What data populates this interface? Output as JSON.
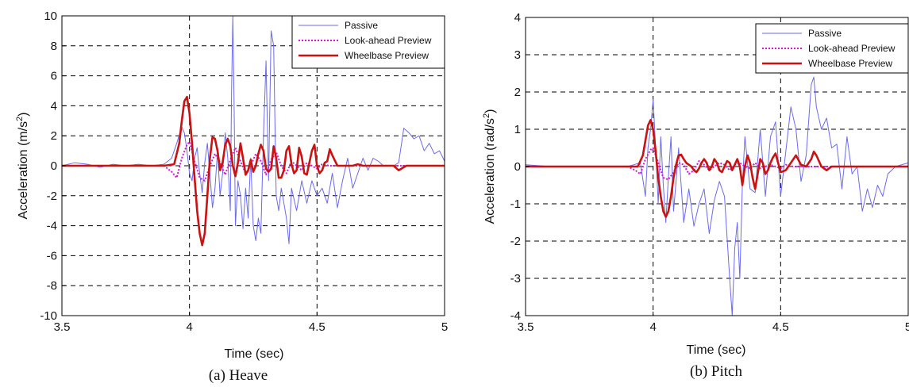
{
  "chart_data": [
    {
      "type": "line",
      "caption": "(a) Heave",
      "xlabel": "Time (sec)",
      "ylabel_main": "Acceleration (m/s",
      "ylabel_sup": "2",
      "ylabel_tail": ")",
      "xlim": [
        3.5,
        5
      ],
      "ylim": [
        -10,
        10
      ],
      "xticks": [
        3.5,
        4,
        4.5,
        5
      ],
      "xtick_labels": [
        "3.5",
        "4",
        "4.5",
        "5"
      ],
      "yticks": [
        -10,
        -8,
        -6,
        -4,
        -2,
        0,
        2,
        4,
        6,
        8,
        10
      ],
      "ytick_labels": [
        "-10",
        "-8",
        "-6",
        "-4",
        "-2",
        "0",
        "2",
        "4",
        "6",
        "8",
        "10"
      ],
      "grid": true,
      "legend_position": "top-right",
      "series": [
        {
          "name": "Passive",
          "color": "#6a6af0",
          "style": "solid",
          "x": [
            3.5,
            3.55,
            3.6,
            3.65,
            3.7,
            3.75,
            3.8,
            3.85,
            3.9,
            3.93,
            3.95,
            3.97,
            3.98,
            3.99,
            4.0,
            4.01,
            4.02,
            4.03,
            4.04,
            4.05,
            4.06,
            4.07,
            4.08,
            4.09,
            4.1,
            4.11,
            4.12,
            4.13,
            4.14,
            4.15,
            4.16,
            4.165,
            4.17,
            4.175,
            4.18,
            4.19,
            4.2,
            4.21,
            4.22,
            4.23,
            4.24,
            4.25,
            4.26,
            4.27,
            4.28,
            4.29,
            4.3,
            4.31,
            4.32,
            4.33,
            4.34,
            4.35,
            4.36,
            4.37,
            4.38,
            4.39,
            4.4,
            4.42,
            4.44,
            4.46,
            4.48,
            4.5,
            4.52,
            4.54,
            4.56,
            4.58,
            4.6,
            4.62,
            4.64,
            4.66,
            4.68,
            4.7,
            4.72,
            4.74,
            4.76,
            4.78,
            4.8,
            4.82,
            4.84,
            4.86,
            4.88,
            4.9,
            4.92,
            4.94,
            4.96,
            4.98,
            5.0
          ],
          "y": [
            0,
            0.2,
            0.1,
            -0.1,
            0.1,
            0,
            0.1,
            0,
            0.1,
            0.5,
            1.5,
            2.6,
            2.2,
            1.0,
            -0.5,
            -1.0,
            0.5,
            1.2,
            -0.5,
            -1.8,
            0.2,
            1.5,
            -0.5,
            -2.8,
            -1.5,
            1.0,
            -2.0,
            -0.5,
            2.2,
            0.5,
            -3.0,
            5.0,
            10.0,
            4.0,
            -4.0,
            -1.0,
            -2.0,
            -4.2,
            -1.5,
            -3.5,
            0.5,
            -4.0,
            -5.0,
            -3.5,
            -4.5,
            2.0,
            7.0,
            -1.0,
            9.0,
            8.0,
            -2.0,
            -3.0,
            -1.5,
            -2.5,
            -3.5,
            -5.2,
            -1.5,
            -3.0,
            -1.0,
            -2.5,
            -1.0,
            -2.0,
            -1.5,
            -2.5,
            -0.5,
            -2.8,
            -1.0,
            0.5,
            -1.5,
            -0.5,
            0.5,
            -0.3,
            0.5,
            0.3,
            0.0,
            0.0,
            0.0,
            0.2,
            2.5,
            2.2,
            1.8,
            2.0,
            1.0,
            1.5,
            0.8,
            1.0,
            0.3
          ]
        },
        {
          "name": "Look-ahead Preview",
          "color": "#e010e0",
          "style": "dotted",
          "x": [
            3.5,
            3.6,
            3.7,
            3.8,
            3.9,
            3.93,
            3.95,
            3.97,
            3.99,
            4.0,
            4.02,
            4.04,
            4.06,
            4.08,
            4.1,
            4.12,
            4.14,
            4.16,
            4.18,
            4.2,
            4.22,
            4.24,
            4.26,
            4.28,
            4.3,
            4.32,
            4.34,
            4.36,
            4.38,
            4.4,
            4.42,
            4.44,
            4.46,
            4.48,
            4.5,
            4.52,
            4.55,
            4.6,
            4.7,
            4.8,
            4.9,
            5.0
          ],
          "y": [
            0,
            0,
            0,
            0,
            0,
            -0.4,
            -0.8,
            0.5,
            1.4,
            1.6,
            0.3,
            -0.8,
            -1.0,
            0.0,
            0.8,
            0.2,
            -0.6,
            0.4,
            1.2,
            0.3,
            -0.5,
            0.0,
            0.8,
            0.3,
            -0.6,
            0.4,
            0.9,
            0.0,
            -0.5,
            0.3,
            0.0,
            -0.3,
            0.2,
            0.0,
            -0.2,
            0.1,
            0,
            0,
            0,
            0,
            0,
            0
          ]
        },
        {
          "name": "Wheelbase Preview",
          "color": "#cc1111",
          "style": "solid",
          "x": [
            3.5,
            3.6,
            3.7,
            3.8,
            3.9,
            3.94,
            3.96,
            3.97,
            3.98,
            3.99,
            4.0,
            4.01,
            4.02,
            4.03,
            4.04,
            4.05,
            4.06,
            4.07,
            4.08,
            4.09,
            4.1,
            4.11,
            4.12,
            4.13,
            4.14,
            4.15,
            4.16,
            4.17,
            4.18,
            4.19,
            4.2,
            4.21,
            4.22,
            4.23,
            4.24,
            4.25,
            4.26,
            4.27,
            4.28,
            4.29,
            4.3,
            4.31,
            4.32,
            4.33,
            4.34,
            4.35,
            4.36,
            4.37,
            4.38,
            4.39,
            4.4,
            4.41,
            4.42,
            4.43,
            4.44,
            4.45,
            4.46,
            4.47,
            4.48,
            4.49,
            4.5,
            4.51,
            4.52,
            4.53,
            4.54,
            4.55,
            4.56,
            4.58,
            4.6,
            4.62,
            4.64,
            4.66,
            4.68,
            4.7,
            4.75,
            4.8,
            4.82,
            4.85,
            4.9,
            4.95,
            5.0
          ],
          "y": [
            0,
            0,
            0,
            0,
            0,
            0.1,
            1.5,
            3.0,
            4.3,
            4.6,
            3.5,
            1.5,
            -0.8,
            -3.0,
            -4.5,
            -5.3,
            -4.5,
            -2.0,
            0.5,
            1.9,
            1.8,
            1.0,
            -0.3,
            0.2,
            1.4,
            1.8,
            1.3,
            0.0,
            -0.7,
            0.2,
            1.5,
            0.5,
            -0.6,
            -0.3,
            0.4,
            -0.4,
            0.0,
            0.8,
            1.4,
            1.0,
            -0.2,
            -0.4,
            -0.2,
            1.3,
            0.5,
            -0.8,
            -0.8,
            -0.3,
            1.0,
            1.3,
            0.1,
            -0.5,
            -0.3,
            1.2,
            0.6,
            -0.5,
            -0.6,
            0.2,
            1.0,
            1.4,
            0.0,
            -0.5,
            -0.3,
            0.2,
            0.3,
            1.1,
            0.7,
            0.0,
            0.0,
            0.0,
            0.0,
            0.1,
            0.0,
            0.0,
            0.0,
            0.0,
            -0.3,
            0.0,
            0.0,
            0.0,
            0.0
          ]
        }
      ]
    },
    {
      "type": "line",
      "caption": "(b) Pitch",
      "xlabel": "Time (sec)",
      "ylabel_main": "Acceleration (rad/s",
      "ylabel_sup": "2",
      "ylabel_tail": ")",
      "xlim": [
        3.5,
        5
      ],
      "ylim": [
        -4,
        4
      ],
      "xticks": [
        3.5,
        4,
        4.5,
        5
      ],
      "xtick_labels": [
        "3.5",
        "4",
        "4.5",
        "5"
      ],
      "yticks": [
        -4,
        -3,
        -2,
        -1,
        0,
        1,
        2,
        3,
        4
      ],
      "ytick_labels": [
        "-4",
        "-3",
        "-2",
        "-1",
        "0",
        "1",
        "2",
        "3",
        "4"
      ],
      "grid": true,
      "legend_position": "top-right",
      "series": [
        {
          "name": "Passive",
          "color": "#6a6af0",
          "style": "solid",
          "x": [
            3.5,
            3.6,
            3.7,
            3.8,
            3.9,
            3.95,
            3.97,
            3.98,
            3.99,
            4.0,
            4.01,
            4.02,
            4.03,
            4.04,
            4.05,
            4.06,
            4.07,
            4.08,
            4.09,
            4.1,
            4.12,
            4.14,
            4.16,
            4.18,
            4.2,
            4.22,
            4.24,
            4.26,
            4.28,
            4.3,
            4.31,
            4.32,
            4.33,
            4.34,
            4.35,
            4.36,
            4.38,
            4.4,
            4.42,
            4.44,
            4.46,
            4.48,
            4.5,
            4.52,
            4.54,
            4.56,
            4.58,
            4.6,
            4.62,
            4.63,
            4.64,
            4.66,
            4.68,
            4.7,
            4.72,
            4.74,
            4.76,
            4.78,
            4.8,
            4.82,
            4.84,
            4.86,
            4.88,
            4.9,
            4.92,
            4.95,
            5.0
          ],
          "y": [
            0.05,
            0,
            0,
            0,
            0,
            0.1,
            -0.8,
            0.5,
            1.0,
            1.8,
            0.5,
            -1.0,
            0.8,
            -0.5,
            -1.5,
            -0.3,
            0.8,
            -1.2,
            -0.4,
            0.5,
            -1.5,
            -0.6,
            -1.6,
            -1.0,
            -0.6,
            -1.8,
            -0.9,
            -0.4,
            -0.8,
            -3.0,
            -4.0,
            -2.2,
            -1.5,
            -3.0,
            -0.5,
            0.8,
            -0.6,
            -0.7,
            1.0,
            -0.8,
            0.8,
            1.2,
            -0.8,
            0.4,
            1.6,
            1.0,
            -0.4,
            0.3,
            2.2,
            2.4,
            1.6,
            1.0,
            1.3,
            0.5,
            0.6,
            -0.6,
            0.8,
            -0.2,
            0.0,
            -1.2,
            -0.6,
            -1.1,
            -0.5,
            -0.8,
            -0.2,
            0.0,
            0.1
          ]
        },
        {
          "name": "Look-ahead Preview",
          "color": "#e010e0",
          "style": "dotted",
          "x": [
            3.5,
            3.6,
            3.7,
            3.8,
            3.9,
            3.93,
            3.95,
            3.97,
            3.99,
            4.0,
            4.02,
            4.04,
            4.06,
            4.08,
            4.1,
            4.12,
            4.14,
            4.16,
            4.18,
            4.2,
            4.22,
            4.24,
            4.26,
            4.28,
            4.3,
            4.32,
            4.34,
            4.36,
            4.38,
            4.4,
            4.42,
            4.44,
            4.46,
            4.48,
            4.5,
            4.52,
            4.55,
            4.6,
            4.7,
            4.8,
            4.9,
            5.0
          ],
          "y": [
            0,
            0,
            0,
            0,
            0,
            -0.1,
            -0.2,
            0.2,
            0.45,
            0.5,
            0.1,
            -0.3,
            -0.35,
            -0.15,
            0.1,
            0.05,
            -0.2,
            -0.1,
            0.15,
            0.05,
            -0.1,
            0.0,
            0.1,
            0.05,
            -0.1,
            0.05,
            0.1,
            0.0,
            -0.05,
            0.1,
            -0.05,
            0.0,
            0.05,
            0.0,
            -0.05,
            0.05,
            0,
            0,
            0,
            0,
            0,
            0
          ]
        },
        {
          "name": "Wheelbase Preview",
          "color": "#cc1111",
          "style": "solid",
          "x": [
            3.5,
            3.6,
            3.7,
            3.8,
            3.9,
            3.94,
            3.96,
            3.97,
            3.98,
            3.99,
            4.0,
            4.01,
            4.02,
            4.03,
            4.04,
            4.05,
            4.06,
            4.07,
            4.08,
            4.09,
            4.1,
            4.11,
            4.12,
            4.13,
            4.14,
            4.15,
            4.16,
            4.17,
            4.18,
            4.19,
            4.2,
            4.21,
            4.22,
            4.23,
            4.24,
            4.25,
            4.26,
            4.27,
            4.28,
            4.29,
            4.3,
            4.31,
            4.32,
            4.33,
            4.34,
            4.35,
            4.36,
            4.37,
            4.38,
            4.39,
            4.4,
            4.41,
            4.42,
            4.43,
            4.44,
            4.45,
            4.46,
            4.47,
            4.48,
            4.49,
            4.5,
            4.52,
            4.54,
            4.56,
            4.58,
            4.6,
            4.62,
            4.63,
            4.64,
            4.66,
            4.68,
            4.7,
            4.75,
            4.8,
            4.9,
            5.0
          ],
          "y": [
            0,
            0,
            0,
            0,
            0,
            0.0,
            0.3,
            0.7,
            1.1,
            1.25,
            1.0,
            0.4,
            -0.3,
            -0.8,
            -1.2,
            -1.35,
            -1.2,
            -0.8,
            -0.3,
            0.05,
            0.3,
            0.32,
            0.2,
            0.1,
            0.05,
            0.0,
            -0.1,
            -0.15,
            -0.05,
            0.1,
            0.2,
            0.1,
            -0.1,
            0.0,
            0.2,
            0.1,
            -0.1,
            -0.15,
            0.0,
            0.15,
            0.1,
            -0.1,
            0.05,
            0.2,
            0.0,
            -0.5,
            0.0,
            0.3,
            0.1,
            -0.3,
            -0.6,
            -0.2,
            0.2,
            0.1,
            -0.2,
            -0.1,
            0.1,
            0.25,
            0.35,
            0.1,
            -0.15,
            -0.1,
            0.1,
            0.3,
            0.05,
            0.0,
            0.2,
            0.4,
            0.3,
            0.0,
            -0.1,
            0.0,
            0.0,
            0.0,
            0.0,
            0.0
          ]
        }
      ]
    }
  ]
}
